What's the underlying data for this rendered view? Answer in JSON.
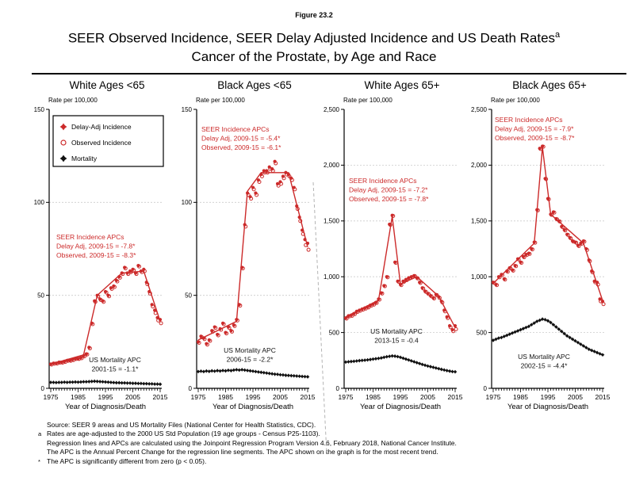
{
  "figure_label": "Figure 23.2",
  "title": {
    "line1": "SEER Observed Incidence, SEER Delay Adjusted Incidence and US Death Rates",
    "superscript": "a",
    "line2": "Cancer of the Prostate, by Age and Race"
  },
  "colors": {
    "incidence_red": "#cc2a2a",
    "mortality_black": "#111111",
    "grid": "#cccccc",
    "axis": "#000000",
    "separator": "#b3b3b3"
  },
  "legend": {
    "items": [
      {
        "label": "Delay-Adj Incidence",
        "marker": "filled-star",
        "color": "#cc2a2a"
      },
      {
        "label": "Observed Incidence",
        "marker": "open-circle",
        "color": "#cc2a2a"
      },
      {
        "label": "Mortality",
        "marker": "black-star",
        "color": "#111111"
      }
    ]
  },
  "xlabel": "Year of Diagnosis/Death",
  "ylabel": "Rate per 100,000",
  "years": [
    1975,
    1976,
    1977,
    1978,
    1979,
    1980,
    1981,
    1982,
    1983,
    1984,
    1985,
    1986,
    1987,
    1988,
    1989,
    1990,
    1991,
    1992,
    1993,
    1994,
    1995,
    1996,
    1997,
    1998,
    1999,
    2000,
    2001,
    2002,
    2003,
    2004,
    2005,
    2006,
    2007,
    2008,
    2009,
    2010,
    2011,
    2012,
    2013,
    2014,
    2015
  ],
  "x_ticks": [
    1975,
    1985,
    1995,
    2005,
    2015
  ],
  "chart_data": [
    {
      "type": "line",
      "title": "White Ages <65",
      "ylabel": "Rate per 100,000",
      "xlabel": "Year of Diagnosis/Death",
      "ylim": [
        0,
        150
      ],
      "yticks": [
        0,
        50,
        100,
        150
      ],
      "ytick_labels": [
        "0",
        "50",
        "100",
        "150"
      ],
      "annotations": {
        "apc": [
          "SEER Incidence APCs",
          "Delay Adj, 2009-15 = -7.8*",
          "Observed, 2009-15 = -8.3*"
        ],
        "mortality_apc": [
          "US Mortality APC",
          "2001-15 = -1.1*"
        ]
      },
      "series": [
        {
          "name": "Delay-Adj Incidence",
          "values": [
            13,
            13.5,
            13.5,
            14,
            14,
            14.5,
            15,
            15,
            15.5,
            16,
            16,
            16.5,
            17.5,
            18.5,
            22,
            35,
            47,
            50,
            48,
            47,
            52,
            50,
            54,
            55,
            58,
            60,
            62,
            65,
            62,
            63,
            64,
            62,
            66,
            63,
            64,
            57,
            52,
            45,
            42,
            38,
            37
          ]
        },
        {
          "name": "Observed Incidence",
          "values": [
            12.8,
            13.2,
            13.3,
            13.8,
            13.8,
            14.2,
            14.8,
            14.8,
            15.2,
            15.8,
            15.8,
            16.2,
            17.2,
            18.2,
            21.5,
            34.5,
            46.5,
            49.5,
            47.5,
            46.5,
            51.5,
            49.5,
            53.5,
            54.5,
            57.5,
            59.5,
            61.5,
            64.5,
            61.5,
            62.5,
            63.5,
            61.5,
            65.5,
            62.5,
            63,
            56,
            51,
            44,
            40.5,
            36.5,
            35
          ]
        },
        {
          "name": "Mortality",
          "values": [
            3.2,
            3.2,
            3.1,
            3.2,
            3.2,
            3.3,
            3.2,
            3.3,
            3.3,
            3.4,
            3.3,
            3.4,
            3.5,
            3.5,
            3.6,
            3.7,
            3.8,
            3.7,
            3.6,
            3.5,
            3.4,
            3.3,
            3.2,
            3.1,
            3,
            3,
            2.9,
            2.9,
            2.8,
            2.8,
            2.7,
            2.7,
            2.6,
            2.6,
            2.5,
            2.5,
            2.4,
            2.4,
            2.3,
            2.3,
            2.2
          ]
        }
      ],
      "trend": [
        [
          1975,
          13
        ],
        [
          1987,
          18
        ],
        [
          1992,
          50
        ],
        [
          2001,
          62
        ],
        [
          2009,
          63
        ],
        [
          2015,
          36
        ]
      ]
    },
    {
      "type": "line",
      "title": "Black Ages <65",
      "ylabel": "Rate per 100,000",
      "xlabel": "Year of Diagnosis/Death",
      "ylim": [
        0,
        150
      ],
      "yticks": [
        0,
        50,
        100,
        150
      ],
      "ytick_labels": [
        "0",
        "50",
        "100",
        "150"
      ],
      "annotations": {
        "apc": [
          "SEER Incidence APCs",
          "Delay Adj, 2009-15 = -5.4*",
          "Observed, 2009-15 = -6.1*"
        ],
        "mortality_apc": [
          "US Mortality APC",
          "2006-15 = -2.2*"
        ]
      },
      "series": [
        {
          "name": "Delay-Adj Incidence",
          "values": [
            25,
            28,
            27,
            24,
            26,
            31,
            33,
            29,
            32,
            35,
            30,
            33,
            31,
            34,
            37,
            45,
            65,
            88,
            105,
            103,
            108,
            105,
            112,
            115,
            117,
            117,
            119,
            118,
            122,
            110,
            111,
            114,
            116,
            115,
            113,
            108,
            98,
            92,
            85,
            80,
            78
          ]
        },
        {
          "name": "Observed Incidence",
          "values": [
            24.5,
            27.5,
            26.5,
            23.5,
            25.5,
            30.5,
            32.5,
            28.5,
            31.5,
            34.5,
            29.5,
            32.5,
            30.5,
            33.5,
            36.5,
            44.5,
            64.5,
            87,
            104,
            102,
            107,
            104,
            111,
            114,
            116,
            116,
            118,
            117,
            121,
            109,
            110,
            113,
            115,
            114,
            112,
            107,
            96.5,
            90,
            83,
            77,
            74.5
          ]
        },
        {
          "name": "Mortality",
          "values": [
            9,
            9.2,
            9,
            9.3,
            9.1,
            9.4,
            9.2,
            9.5,
            9.3,
            9.6,
            9.4,
            9.7,
            9.5,
            9.8,
            10,
            9.8,
            10,
            9.8,
            9.6,
            9.4,
            9.2,
            9,
            8.8,
            8.6,
            8.4,
            8.2,
            8,
            7.8,
            7.6,
            7.5,
            7.3,
            7.2,
            7,
            6.9,
            6.8,
            6.7,
            6.6,
            6.5,
            6.4,
            6.3,
            6.2
          ]
        }
      ],
      "trend": [
        [
          1975,
          26
        ],
        [
          1989,
          36
        ],
        [
          1993,
          106
        ],
        [
          1998,
          116
        ],
        [
          2008,
          116
        ],
        [
          2015,
          76
        ]
      ]
    },
    {
      "type": "line",
      "title": "White Ages 65+",
      "ylabel": "Rate per 100,000",
      "xlabel": "Year of Diagnosis/Death",
      "ylim": [
        0,
        2500
      ],
      "yticks": [
        0,
        500,
        1000,
        1500,
        2000,
        2500
      ],
      "ytick_labels": [
        "0",
        "500",
        "1,000",
        "1,500",
        "2,000",
        "2,500"
      ],
      "annotations": {
        "apc": [
          "SEER Incidence APCs",
          "Delay Adj, 2009-15 = -7.2*",
          "Observed, 2009-15 = -7.8*"
        ],
        "mortality_apc": [
          "US Mortality APC",
          "2013-15 = -0.4"
        ]
      },
      "series": [
        {
          "name": "Delay-Adj Incidence",
          "values": [
            630,
            650,
            655,
            670,
            690,
            700,
            710,
            720,
            730,
            745,
            755,
            770,
            800,
            855,
            920,
            1000,
            1470,
            1550,
            1130,
            960,
            930,
            960,
            975,
            990,
            1000,
            1010,
            990,
            950,
            900,
            870,
            850,
            830,
            810,
            840,
            820,
            780,
            700,
            640,
            560,
            525,
            560
          ]
        },
        {
          "name": "Observed Incidence",
          "values": [
            625,
            645,
            650,
            665,
            685,
            695,
            705,
            715,
            725,
            740,
            750,
            765,
            795,
            850,
            915,
            995,
            1465,
            1545,
            1125,
            955,
            925,
            955,
            970,
            985,
            995,
            1005,
            985,
            945,
            895,
            865,
            845,
            825,
            805,
            835,
            810,
            770,
            690,
            630,
            548,
            512,
            530
          ]
        },
        {
          "name": "Mortality",
          "values": [
            235,
            238,
            240,
            242,
            245,
            248,
            250,
            252,
            255,
            258,
            262,
            265,
            268,
            272,
            278,
            283,
            287,
            290,
            288,
            284,
            278,
            270,
            262,
            254,
            246,
            238,
            230,
            222,
            214,
            207,
            200,
            194,
            188,
            182,
            176,
            170,
            164,
            159,
            154,
            150,
            148
          ]
        }
      ],
      "trend": [
        [
          1975,
          640
        ],
        [
          1987,
          790
        ],
        [
          1992,
          1540
        ],
        [
          1995,
          935
        ],
        [
          2001,
          1000
        ],
        [
          2009,
          825
        ],
        [
          2015,
          545
        ]
      ]
    },
    {
      "type": "line",
      "title": "Black Ages 65+",
      "ylabel": "Rate per 100,000",
      "xlabel": "Year of Diagnosis/Death",
      "ylim": [
        0,
        2500
      ],
      "yticks": [
        0,
        500,
        1000,
        1500,
        2000,
        2500
      ],
      "ytick_labels": [
        "0",
        "500",
        "1,000",
        "1,500",
        "2,000",
        "2,500"
      ],
      "annotations": {
        "apc": [
          "SEER Incidence APCs",
          "Delay Adj, 2009-15 = -7.9*",
          "Observed, 2009-15 = -8.7*"
        ],
        "mortality_apc": [
          "US Mortality APC",
          "2002-15 = -4.4*"
        ]
      },
      "series": [
        {
          "name": "Delay-Adj Incidence",
          "values": [
            950,
            930,
            1000,
            1020,
            980,
            1050,
            1080,
            1060,
            1100,
            1160,
            1130,
            1180,
            1200,
            1210,
            1250,
            1310,
            1600,
            2150,
            2170,
            1880,
            1700,
            1560,
            1580,
            1520,
            1500,
            1450,
            1420,
            1380,
            1350,
            1320,
            1310,
            1280,
            1300,
            1320,
            1250,
            1150,
            1050,
            960,
            950,
            800,
            780
          ]
        },
        {
          "name": "Observed Incidence",
          "values": [
            945,
            925,
            995,
            1015,
            975,
            1045,
            1075,
            1055,
            1095,
            1155,
            1125,
            1175,
            1195,
            1205,
            1245,
            1305,
            1595,
            2145,
            2165,
            1875,
            1695,
            1555,
            1575,
            1515,
            1495,
            1445,
            1415,
            1375,
            1345,
            1315,
            1305,
            1275,
            1295,
            1315,
            1240,
            1140,
            1040,
            950,
            930,
            780,
            755
          ]
        },
        {
          "name": "Mortality",
          "values": [
            430,
            440,
            450,
            455,
            465,
            475,
            485,
            495,
            505,
            515,
            525,
            535,
            545,
            555,
            570,
            585,
            600,
            610,
            620,
            615,
            605,
            590,
            570,
            550,
            530,
            510,
            490,
            470,
            455,
            440,
            425,
            410,
            395,
            380,
            365,
            350,
            340,
            330,
            320,
            310,
            300
          ]
        }
      ],
      "trend": [
        [
          1975,
          940
        ],
        [
          1990,
          1300
        ],
        [
          1993,
          2160
        ],
        [
          1996,
          1560
        ],
        [
          2008,
          1300
        ],
        [
          2015,
          785
        ]
      ]
    }
  ],
  "footnotes": [
    {
      "marker": "",
      "text": "Source: SEER 9 areas and US Mortality Files (National Center for Health Statistics, CDC)."
    },
    {
      "marker": "a",
      "text": "Rates are age-adjusted to the 2000 US Std Population (19 age groups - Census P25-1103)."
    },
    {
      "marker": "",
      "text": "Regression lines and APCs are calculated using the Joinpoint Regression Program Version 4.6, February 2018, National Cancer Institute."
    },
    {
      "marker": "",
      "text": "The APC is the Annual Percent Change for the regression line segments. The APC shown on the graph is for the most recent trend."
    },
    {
      "marker": "*",
      "text": "The APC is significantly different from zero (p < 0.05)."
    }
  ]
}
